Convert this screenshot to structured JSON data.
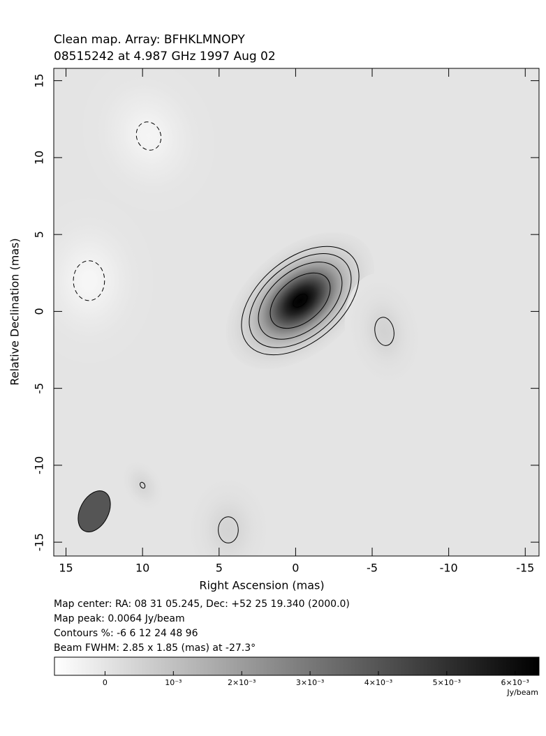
{
  "chart_data": {
    "type": "contour-map",
    "title": "Clean map.  Array: BFHKLMNOPY",
    "subtitle": "08515242 at 4.987 GHz 1997 Aug 02",
    "x_label": "Right Ascension  (mas)",
    "y_label": "Relative Declination  (mas)",
    "xlim": [
      15.8,
      -15.9
    ],
    "ylim": [
      -15.9,
      15.8
    ],
    "xticks": [
      15,
      10,
      5,
      0,
      -5,
      -10,
      -15
    ],
    "yticks": [
      -15,
      -10,
      -5,
      0,
      5,
      10,
      15
    ],
    "notes": [
      "Map center:  RA: 08 31 05.245,  Dec: +52 25 19.340 (2000.0)",
      "Map peak: 0.0064 Jy/beam",
      "Contours %: -6 6 12 24 48 96",
      "Beam FWHM: 2.85 x 1.85 (mas) at -27.3°"
    ],
    "contour_levels": [
      -6,
      6,
      12,
      24,
      48,
      96
    ],
    "components": [
      {
        "x": -0.3,
        "y": 0.7,
        "flux": 0.0064,
        "major": 4.4,
        "minor": 2.7,
        "pa": -50
      },
      {
        "x": -5.8,
        "y": -1.3,
        "flux": 0.0005,
        "major": 3,
        "minor": 2,
        "pa": 10
      },
      {
        "x": 4.4,
        "y": -14.2,
        "flux": 0.00048,
        "major": 3,
        "minor": 2.3,
        "pa": 0
      },
      {
        "x": 10,
        "y": -11.3,
        "flux": 0.0004,
        "major": 1.7,
        "minor": 1.2,
        "pa": 30
      },
      {
        "x": 13.5,
        "y": 2,
        "flux": -0.0005,
        "major": 4.2,
        "minor": 3.3,
        "pa": 0
      },
      {
        "x": 9.6,
        "y": 11.4,
        "flux": -0.00045,
        "major": 3.9,
        "minor": 3.3,
        "pa": 20
      }
    ],
    "beam": {
      "major": 2.85,
      "minor": 1.85,
      "pa": -27.3
    },
    "colorbar": {
      "lim": [
        -0.00074,
        0.00635
      ],
      "ticks": [
        0,
        {
          "value": 0.001,
          "label": "10⁻³"
        },
        {
          "value": 0.002,
          "label": "2×10⁻³"
        },
        {
          "value": 0.003,
          "label": "3×10⁻³"
        },
        {
          "value": 0.004,
          "label": "4×10⁻³"
        },
        {
          "value": 0.005,
          "label": "5×10⁻³"
        },
        {
          "value": 0.006,
          "label": "6×10⁻³"
        }
      ],
      "unit": "Jy/beam"
    }
  }
}
